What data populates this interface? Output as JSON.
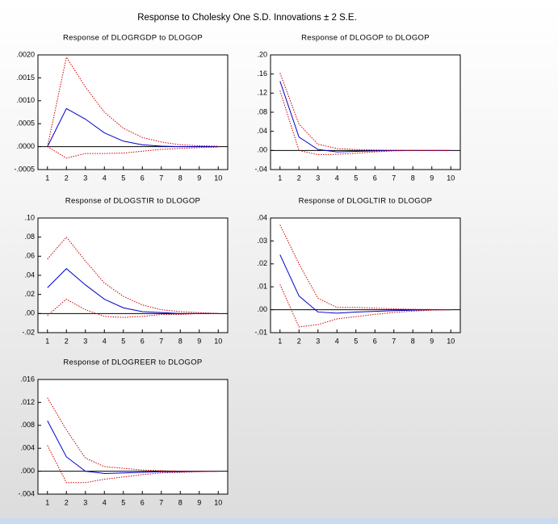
{
  "title": "Response to Cholesky One S.D. Innovations ± 2 S.E.",
  "chart_data": [
    {
      "type": "line",
      "title": "Response of DLOGRGDP to DLOGOP",
      "categories": [
        "1",
        "2",
        "3",
        "4",
        "5",
        "6",
        "7",
        "8",
        "9",
        "10"
      ],
      "series": [
        {
          "color": "#0000cc",
          "style": "solid",
          "values": [
            0,
            0.00083,
            0.0006,
            0.0003,
            0.00012,
            4e-05,
            1e-05,
            0,
            0,
            0
          ]
        },
        {
          "color": "#cc0000",
          "style": "dotted",
          "values": [
            0,
            0.00195,
            0.0013,
            0.00075,
            0.0004,
            0.0002,
            0.0001,
            4e-05,
            2e-05,
            1e-05
          ]
        },
        {
          "color": "#cc0000",
          "style": "dotted",
          "values": [
            0,
            -0.00025,
            -0.00015,
            -0.00015,
            -0.00014,
            -0.0001,
            -6e-05,
            -4e-05,
            -2e-05,
            -1e-05
          ]
        }
      ],
      "ylim": [
        -0.0005,
        0.002
      ],
      "yticks": [
        {
          "value": -0.0005,
          "label": "-.0005"
        },
        {
          "value": 0,
          "label": ".0000"
        },
        {
          "value": 0.0005,
          "label": ".0005"
        },
        {
          "value": 0.001,
          "label": ".0010"
        },
        {
          "value": 0.0015,
          "label": ".0015"
        },
        {
          "value": 0.002,
          "label": ".0020"
        }
      ],
      "zero_line": true
    },
    {
      "type": "line",
      "title": "Response of DLOGOP to DLOGOP",
      "categories": [
        "1",
        "2",
        "3",
        "4",
        "5",
        "6",
        "7",
        "8",
        "9",
        "10"
      ],
      "series": [
        {
          "color": "#0000cc",
          "style": "solid",
          "values": [
            0.145,
            0.028,
            0.002,
            -0.003,
            -0.002,
            -0.001,
            0,
            0,
            0,
            0
          ]
        },
        {
          "color": "#cc0000",
          "style": "dotted",
          "values": [
            0.162,
            0.055,
            0.013,
            0.004,
            0.002,
            0.001,
            0.0005,
            0,
            0,
            0
          ]
        },
        {
          "color": "#cc0000",
          "style": "dotted",
          "values": [
            0.125,
            0,
            -0.009,
            -0.008,
            -0.006,
            -0.003,
            -0.001,
            0,
            0,
            0
          ]
        }
      ],
      "ylim": [
        -0.04,
        0.2
      ],
      "yticks": [
        {
          "value": -0.04,
          "label": "-.04"
        },
        {
          "value": 0,
          "label": ".00"
        },
        {
          "value": 0.04,
          "label": ".04"
        },
        {
          "value": 0.08,
          "label": ".08"
        },
        {
          "value": 0.12,
          "label": ".12"
        },
        {
          "value": 0.16,
          "label": ".16"
        },
        {
          "value": 0.2,
          "label": ".20"
        }
      ],
      "zero_line": true
    },
    {
      "type": "line",
      "title": "Response of DLOGSTIR to DLOGOP",
      "categories": [
        "1",
        "2",
        "3",
        "4",
        "5",
        "6",
        "7",
        "8",
        "9",
        "10"
      ],
      "series": [
        {
          "color": "#0000cc",
          "style": "solid",
          "values": [
            0.027,
            0.047,
            0.03,
            0.015,
            0.006,
            0.002,
            0.001,
            0,
            0,
            0
          ]
        },
        {
          "color": "#cc0000",
          "style": "dotted",
          "values": [
            0.057,
            0.08,
            0.055,
            0.032,
            0.018,
            0.009,
            0.004,
            0.002,
            0.001,
            0
          ]
        },
        {
          "color": "#cc0000",
          "style": "dotted",
          "values": [
            -0.002,
            0.015,
            0.004,
            -0.003,
            -0.004,
            -0.003,
            -0.001,
            -0.001,
            0,
            0
          ]
        }
      ],
      "ylim": [
        -0.02,
        0.1
      ],
      "yticks": [
        {
          "value": -0.02,
          "label": "-.02"
        },
        {
          "value": 0,
          "label": ".00"
        },
        {
          "value": 0.02,
          "label": ".02"
        },
        {
          "value": 0.04,
          "label": ".04"
        },
        {
          "value": 0.06,
          "label": ".06"
        },
        {
          "value": 0.08,
          "label": ".08"
        },
        {
          "value": 0.1,
          "label": ".10"
        }
      ],
      "zero_line": true
    },
    {
      "type": "line",
      "title": "Response of DLOGLTIR to DLOGOP",
      "categories": [
        "1",
        "2",
        "3",
        "4",
        "5",
        "6",
        "7",
        "8",
        "9",
        "10"
      ],
      "series": [
        {
          "color": "#0000cc",
          "style": "solid",
          "values": [
            0.024,
            0.006,
            -0.001,
            -0.0015,
            -0.001,
            -0.0007,
            -0.0004,
            -0.0002,
            0,
            0
          ]
        },
        {
          "color": "#cc0000",
          "style": "dotted",
          "values": [
            0.037,
            0.02,
            0.005,
            0.001,
            0.001,
            0.0007,
            0.0004,
            0.0002,
            0.0001,
            0
          ]
        },
        {
          "color": "#cc0000",
          "style": "dotted",
          "values": [
            0.011,
            -0.0075,
            -0.0065,
            -0.004,
            -0.003,
            -0.002,
            -0.0012,
            -0.0006,
            -0.0002,
            0
          ]
        }
      ],
      "ylim": [
        -0.01,
        0.04
      ],
      "yticks": [
        {
          "value": -0.01,
          "label": "-.01"
        },
        {
          "value": 0,
          "label": ".00"
        },
        {
          "value": 0.01,
          "label": ".01"
        },
        {
          "value": 0.02,
          "label": ".02"
        },
        {
          "value": 0.03,
          "label": ".03"
        },
        {
          "value": 0.04,
          "label": ".04"
        }
      ],
      "zero_line": true
    },
    {
      "type": "line",
      "title": "Response of DLOGREER to DLOGOP",
      "categories": [
        "1",
        "2",
        "3",
        "4",
        "5",
        "6",
        "7",
        "8",
        "9",
        "10"
      ],
      "series": [
        {
          "color": "#0000cc",
          "style": "solid",
          "values": [
            0.0088,
            0.0025,
            0,
            -0.0004,
            -0.0003,
            -0.0002,
            -0.0001,
            -0.0001,
            0,
            0
          ]
        },
        {
          "color": "#cc0000",
          "style": "dotted",
          "values": [
            0.0128,
            0.0072,
            0.0023,
            0.0008,
            0.0005,
            0.0002,
            0.0001,
            0,
            0,
            0
          ]
        },
        {
          "color": "#cc0000",
          "style": "dotted",
          "values": [
            0.0045,
            -0.002,
            -0.002,
            -0.0014,
            -0.001,
            -0.0006,
            -0.0003,
            -0.0002,
            -0.0001,
            0
          ]
        }
      ],
      "ylim": [
        -0.004,
        0.016
      ],
      "yticks": [
        {
          "value": -0.004,
          "label": "-.004"
        },
        {
          "value": 0,
          "label": ".000"
        },
        {
          "value": 0.004,
          "label": ".004"
        },
        {
          "value": 0.008,
          "label": ".008"
        },
        {
          "value": 0.012,
          "label": ".012"
        },
        {
          "value": 0.016,
          "label": ".016"
        }
      ],
      "zero_line": true
    }
  ]
}
